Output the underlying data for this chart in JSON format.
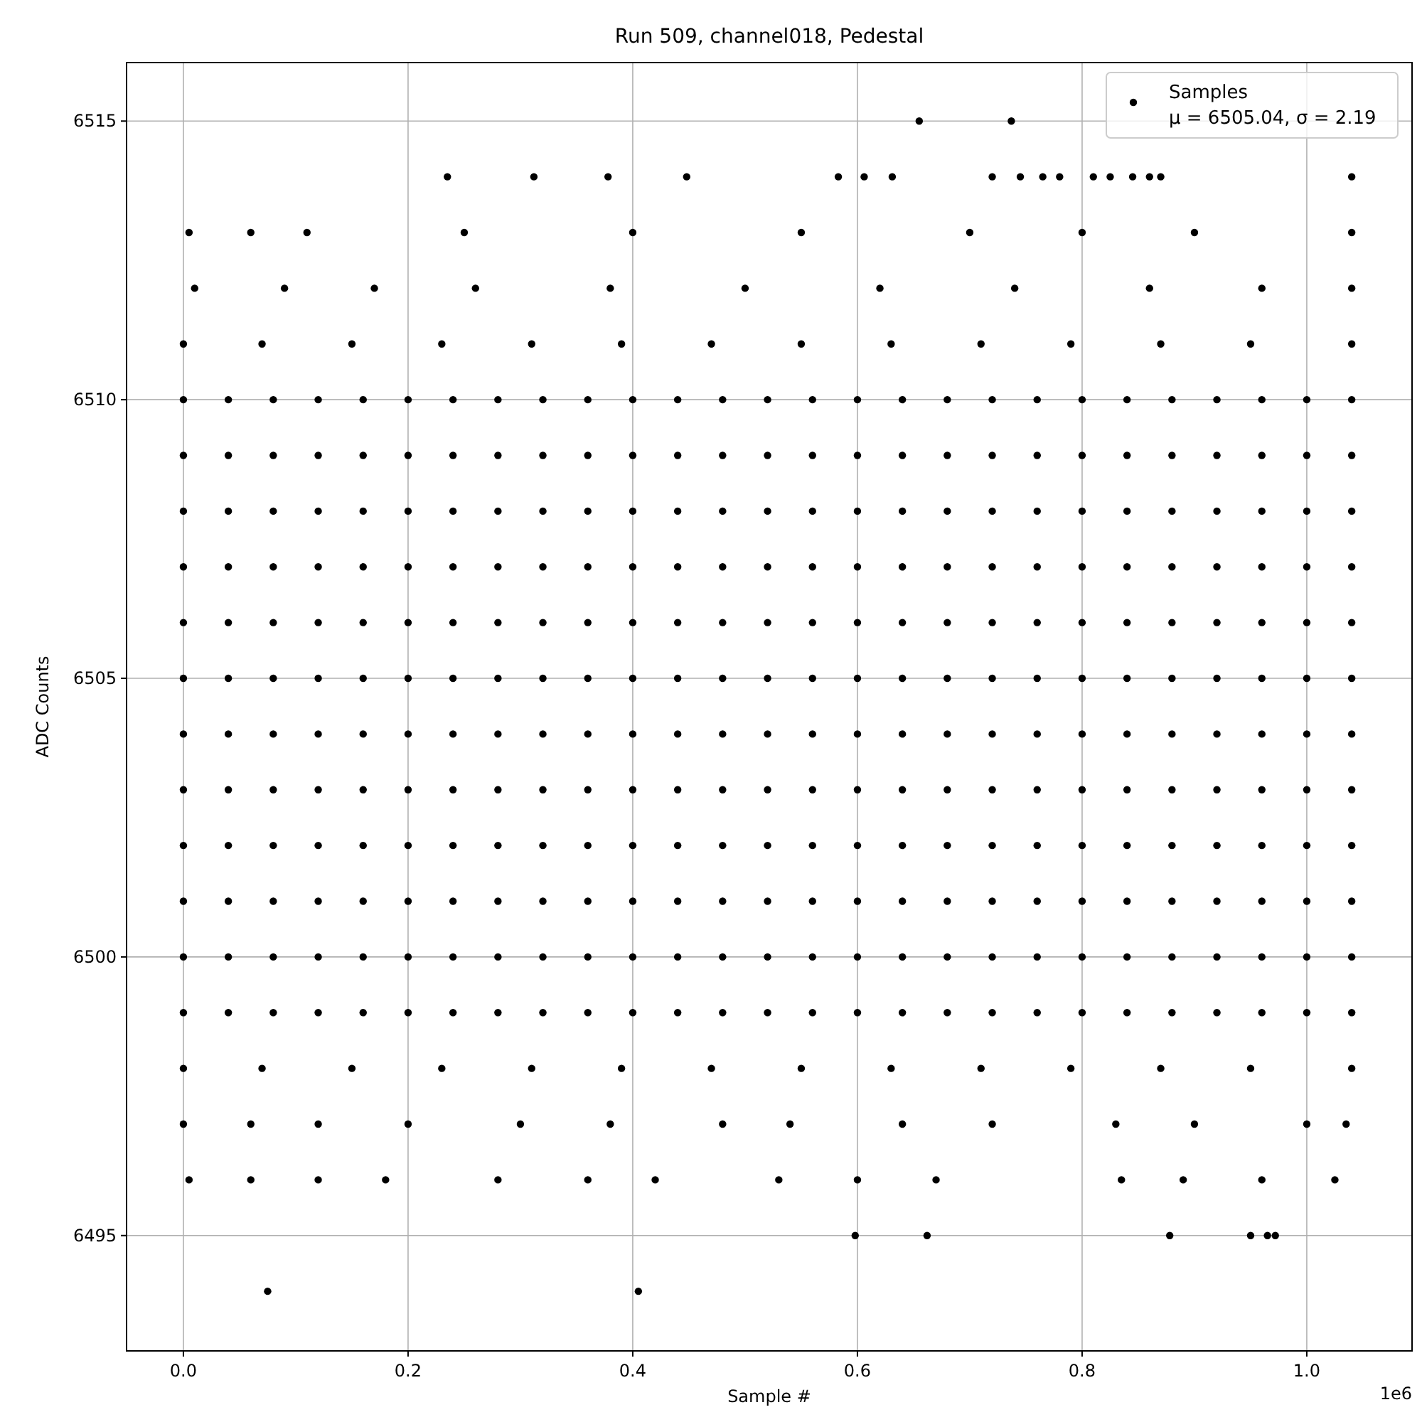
{
  "chart_data": {
    "type": "scatter",
    "title": "Run 509, channel018, Pedestal",
    "xlabel": "Sample #",
    "ylabel": "ADC Counts",
    "xlim": [
      -0.0506,
      1.0937
    ],
    "ylim": [
      6492.93,
      6516.05
    ],
    "xticks": [
      {
        "value": 0,
        "label": "0.0"
      },
      {
        "value": 0.2,
        "label": "0.2"
      },
      {
        "value": 0.4,
        "label": "0.4"
      },
      {
        "value": 0.6,
        "label": "0.6"
      },
      {
        "value": 0.8,
        "label": "0.8"
      },
      {
        "value": 1,
        "label": "1.0"
      }
    ],
    "yticks": [
      6495,
      6500,
      6505,
      6510,
      6515
    ],
    "grid": true,
    "legend": "top right",
    "marker": "circle",
    "annotations": [
      "μ = 6505.04, σ = 2.19",
      "1e6"
    ],
    "series": [
      {
        "name": "Samples",
        "color": "#000000",
        "x": [
          0,
          0.04,
          0.08,
          0.12,
          0.16,
          0.2,
          0.24,
          0.28,
          0.32,
          0.36,
          0.4,
          0.44,
          0.48,
          0.52,
          0.56,
          0.6,
          0.64,
          0.68,
          0.72,
          0.76,
          0.8,
          0.84,
          0.88,
          0.92,
          0.96,
          1,
          1.04,
          0,
          0.04,
          0.08,
          0.12,
          0.16,
          0.2,
          0.24,
          0.28,
          0.32,
          0.36,
          0.4,
          0.44,
          0.48,
          0.52,
          0.56,
          0.6,
          0.64,
          0.68,
          0.72,
          0.76,
          0.8,
          0.84,
          0.88,
          0.92,
          0.96,
          1,
          1.04,
          0,
          0.04,
          0.08,
          0.12,
          0.16,
          0.2,
          0.24,
          0.28,
          0.32,
          0.36,
          0.4,
          0.44,
          0.48,
          0.52,
          0.56,
          0.6,
          0.64,
          0.68,
          0.72,
          0.76,
          0.8,
          0.84,
          0.88,
          0.92,
          0.96,
          1,
          1.04,
          0,
          0.04,
          0.08,
          0.12,
          0.16,
          0.2,
          0.24,
          0.28,
          0.32,
          0.36,
          0.4,
          0.44,
          0.48,
          0.52,
          0.56,
          0.6,
          0.64,
          0.68,
          0.72,
          0.76,
          0.8,
          0.84,
          0.88,
          0.92,
          0.96,
          1,
          1.04,
          0,
          0.04,
          0.08,
          0.12,
          0.16,
          0.2,
          0.24,
          0.28,
          0.32,
          0.36,
          0.4,
          0.44,
          0.48,
          0.52,
          0.56,
          0.6,
          0.64,
          0.68,
          0.72,
          0.76,
          0.8,
          0.84,
          0.88,
          0.92,
          0.96,
          1,
          1.04,
          0,
          0.04,
          0.08,
          0.12,
          0.16,
          0.2,
          0.24,
          0.28,
          0.32,
          0.36,
          0.4,
          0.44,
          0.48,
          0.52,
          0.56,
          0.6,
          0.64,
          0.68,
          0.72,
          0.76,
          0.8,
          0.84,
          0.88,
          0.92,
          0.96,
          1,
          1.04,
          0,
          0.04,
          0.08,
          0.12,
          0.16,
          0.2,
          0.24,
          0.28,
          0.32,
          0.36,
          0.4,
          0.44,
          0.48,
          0.52,
          0.56,
          0.6,
          0.64,
          0.68,
          0.72,
          0.76,
          0.8,
          0.84,
          0.88,
          0.92,
          0.96,
          1,
          1.04,
          0,
          0.04,
          0.08,
          0.12,
          0.16,
          0.2,
          0.24,
          0.28,
          0.32,
          0.36,
          0.4,
          0.44,
          0.48,
          0.52,
          0.56,
          0.6,
          0.64,
          0.68,
          0.72,
          0.76,
          0.8,
          0.84,
          0.88,
          0.92,
          0.96,
          1,
          1.04,
          0,
          0.04,
          0.08,
          0.12,
          0.16,
          0.2,
          0.24,
          0.28,
          0.32,
          0.36,
          0.4,
          0.44,
          0.48,
          0.52,
          0.56,
          0.6,
          0.64,
          0.68,
          0.72,
          0.76,
          0.8,
          0.84,
          0.88,
          0.92,
          0.96,
          1,
          1.04,
          0,
          0.04,
          0.08,
          0.12,
          0.16,
          0.2,
          0.24,
          0.28,
          0.32,
          0.36,
          0.4,
          0.44,
          0.48,
          0.52,
          0.56,
          0.6,
          0.64,
          0.68,
          0.72,
          0.76,
          0.8,
          0.84,
          0.88,
          0.92,
          0.96,
          1,
          1.04,
          0,
          0.04,
          0.08,
          0.12,
          0.16,
          0.2,
          0.24,
          0.28,
          0.32,
          0.36,
          0.4,
          0.44,
          0.48,
          0.52,
          0.56,
          0.6,
          0.64,
          0.68,
          0.72,
          0.76,
          0.8,
          0.84,
          0.88,
          0.92,
          0.96,
          1,
          1.04,
          0,
          0.04,
          0.08,
          0.12,
          0.16,
          0.2,
          0.24,
          0.28,
          0.32,
          0.36,
          0.4,
          0.44,
          0.48,
          0.52,
          0.56,
          0.6,
          0.64,
          0.68,
          0.72,
          0.76,
          0.8,
          0.84,
          0.88,
          0.92,
          0.96,
          1,
          1.04,
          0.005,
          0.06,
          0.11,
          0.25,
          0.4,
          0.55,
          0.7,
          0.8,
          0.9,
          1.04,
          0.01,
          0.09,
          0.17,
          0.26,
          0.38,
          0.5,
          0.62,
          0.74,
          0.86,
          0.96,
          1.04,
          0,
          0.07,
          0.15,
          0.23,
          0.31,
          0.39,
          0.47,
          0.55,
          0.63,
          0.71,
          0.79,
          0.87,
          0.95,
          1.04,
          0,
          0.07,
          0.15,
          0.23,
          0.31,
          0.39,
          0.47,
          0.55,
          0.63,
          0.71,
          0.79,
          0.87,
          0.95,
          1.04,
          0,
          0.06,
          0.12,
          0.2,
          0.3,
          0.38,
          0.48,
          0.54,
          0.64,
          0.72,
          0.83,
          0.9,
          1,
          1.035,
          0.005,
          0.06,
          0.12,
          0.18,
          0.28,
          0.36,
          0.42,
          0.53,
          0.6,
          0.67,
          0.835,
          0.89,
          0.96,
          1.025,
          0.655,
          0.737,
          0.235,
          0.312,
          0.378,
          0.448,
          0.583,
          0.606,
          0.631,
          0.72,
          0.745,
          0.765,
          0.78,
          0.81,
          0.825,
          0.845,
          0.86,
          0.87,
          1.04,
          0.598,
          0.662,
          0.878,
          0.95,
          0.965,
          0.972,
          0.075,
          0.405
        ],
        "values": [
          6510,
          6510,
          6510,
          6510,
          6510,
          6510,
          6510,
          6510,
          6510,
          6510,
          6510,
          6510,
          6510,
          6510,
          6510,
          6510,
          6510,
          6510,
          6510,
          6510,
          6510,
          6510,
          6510,
          6510,
          6510,
          6510,
          6510,
          6509,
          6509,
          6509,
          6509,
          6509,
          6509,
          6509,
          6509,
          6509,
          6509,
          6509,
          6509,
          6509,
          6509,
          6509,
          6509,
          6509,
          6509,
          6509,
          6509,
          6509,
          6509,
          6509,
          6509,
          6509,
          6509,
          6509,
          6508,
          6508,
          6508,
          6508,
          6508,
          6508,
          6508,
          6508,
          6508,
          6508,
          6508,
          6508,
          6508,
          6508,
          6508,
          6508,
          6508,
          6508,
          6508,
          6508,
          6508,
          6508,
          6508,
          6508,
          6508,
          6508,
          6508,
          6507,
          6507,
          6507,
          6507,
          6507,
          6507,
          6507,
          6507,
          6507,
          6507,
          6507,
          6507,
          6507,
          6507,
          6507,
          6507,
          6507,
          6507,
          6507,
          6507,
          6507,
          6507,
          6507,
          6507,
          6507,
          6507,
          6507,
          6506,
          6506,
          6506,
          6506,
          6506,
          6506,
          6506,
          6506,
          6506,
          6506,
          6506,
          6506,
          6506,
          6506,
          6506,
          6506,
          6506,
          6506,
          6506,
          6506,
          6506,
          6506,
          6506,
          6506,
          6506,
          6506,
          6506,
          6505,
          6505,
          6505,
          6505,
          6505,
          6505,
          6505,
          6505,
          6505,
          6505,
          6505,
          6505,
          6505,
          6505,
          6505,
          6505,
          6505,
          6505,
          6505,
          6505,
          6505,
          6505,
          6505,
          6505,
          6505,
          6505,
          6505,
          6504,
          6504,
          6504,
          6504,
          6504,
          6504,
          6504,
          6504,
          6504,
          6504,
          6504,
          6504,
          6504,
          6504,
          6504,
          6504,
          6504,
          6504,
          6504,
          6504,
          6504,
          6504,
          6504,
          6504,
          6504,
          6504,
          6504,
          6503,
          6503,
          6503,
          6503,
          6503,
          6503,
          6503,
          6503,
          6503,
          6503,
          6503,
          6503,
          6503,
          6503,
          6503,
          6503,
          6503,
          6503,
          6503,
          6503,
          6503,
          6503,
          6503,
          6503,
          6503,
          6503,
          6503,
          6502,
          6502,
          6502,
          6502,
          6502,
          6502,
          6502,
          6502,
          6502,
          6502,
          6502,
          6502,
          6502,
          6502,
          6502,
          6502,
          6502,
          6502,
          6502,
          6502,
          6502,
          6502,
          6502,
          6502,
          6502,
          6502,
          6502,
          6501,
          6501,
          6501,
          6501,
          6501,
          6501,
          6501,
          6501,
          6501,
          6501,
          6501,
          6501,
          6501,
          6501,
          6501,
          6501,
          6501,
          6501,
          6501,
          6501,
          6501,
          6501,
          6501,
          6501,
          6501,
          6501,
          6501,
          6500,
          6500,
          6500,
          6500,
          6500,
          6500,
          6500,
          6500,
          6500,
          6500,
          6500,
          6500,
          6500,
          6500,
          6500,
          6500,
          6500,
          6500,
          6500,
          6500,
          6500,
          6500,
          6500,
          6500,
          6500,
          6500,
          6500,
          6499,
          6499,
          6499,
          6499,
          6499,
          6499,
          6499,
          6499,
          6499,
          6499,
          6499,
          6499,
          6499,
          6499,
          6499,
          6499,
          6499,
          6499,
          6499,
          6499,
          6499,
          6499,
          6499,
          6499,
          6499,
          6499,
          6499,
          6513,
          6513,
          6513,
          6513,
          6513,
          6513,
          6513,
          6513,
          6513,
          6513,
          6512,
          6512,
          6512,
          6512,
          6512,
          6512,
          6512,
          6512,
          6512,
          6512,
          6512,
          6511,
          6511,
          6511,
          6511,
          6511,
          6511,
          6511,
          6511,
          6511,
          6511,
          6511,
          6511,
          6511,
          6511,
          6498,
          6498,
          6498,
          6498,
          6498,
          6498,
          6498,
          6498,
          6498,
          6498,
          6498,
          6498,
          6498,
          6498,
          6497,
          6497,
          6497,
          6497,
          6497,
          6497,
          6497,
          6497,
          6497,
          6497,
          6497,
          6497,
          6497,
          6497,
          6496,
          6496,
          6496,
          6496,
          6496,
          6496,
          6496,
          6496,
          6496,
          6496,
          6496,
          6496,
          6496,
          6496,
          6515,
          6515,
          6514,
          6514,
          6514,
          6514,
          6514,
          6514,
          6514,
          6514,
          6514,
          6514,
          6514,
          6514,
          6514,
          6514,
          6514,
          6514,
          6514,
          6495,
          6495,
          6495,
          6495,
          6495,
          6495,
          6494,
          6494
        ]
      }
    ]
  }
}
